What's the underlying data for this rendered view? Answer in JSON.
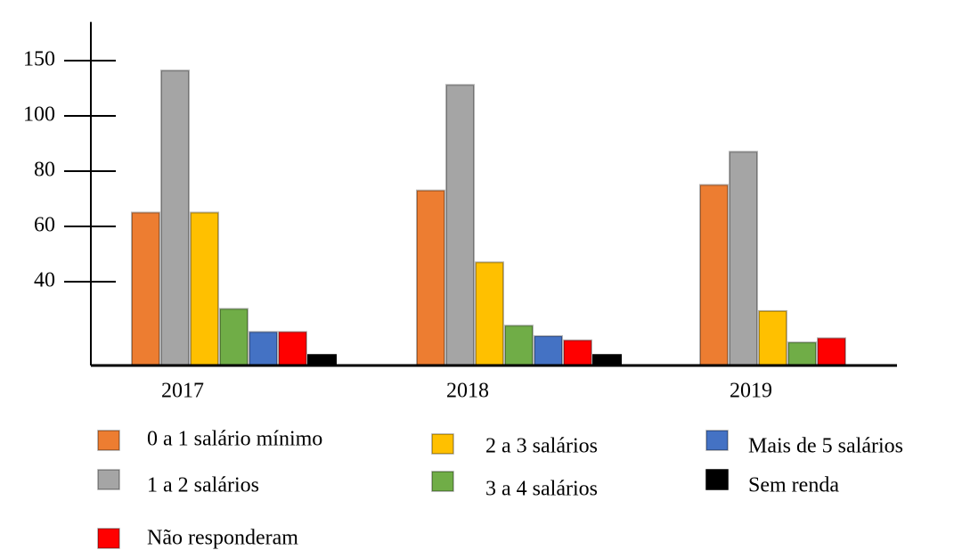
{
  "chart_data": {
    "type": "bar",
    "categories": [
      "2017",
      "2018",
      "2019"
    ],
    "series": [
      {
        "name": "0 a 1 salário mínimo",
        "color": "#ed7d31",
        "values": [
          65,
          73,
          75
        ]
      },
      {
        "name": "1 a 2  salários",
        "color": "#a5a5a5",
        "values": [
          141,
          128,
          87
        ]
      },
      {
        "name": "2 a 3 salários",
        "color": "#ffc000",
        "values": [
          65,
          47,
          26
        ]
      },
      {
        "name": "3 a 4 salários",
        "color": "#70ad47",
        "values": [
          27,
          19,
          11
        ]
      },
      {
        "name": "Mais de 5 salários",
        "color": "#4472c4",
        "values": [
          16,
          14,
          null
        ]
      },
      {
        "name": "Sem renda",
        "color": "#000000",
        "values": [
          5,
          5,
          null
        ]
      },
      {
        "name": "Não responderam",
        "color": "#ff0000",
        "values": [
          16,
          12,
          13
        ]
      }
    ],
    "ylim": [
      0,
      185
    ],
    "yticks": [
      40,
      60,
      80,
      100,
      150
    ]
  }
}
